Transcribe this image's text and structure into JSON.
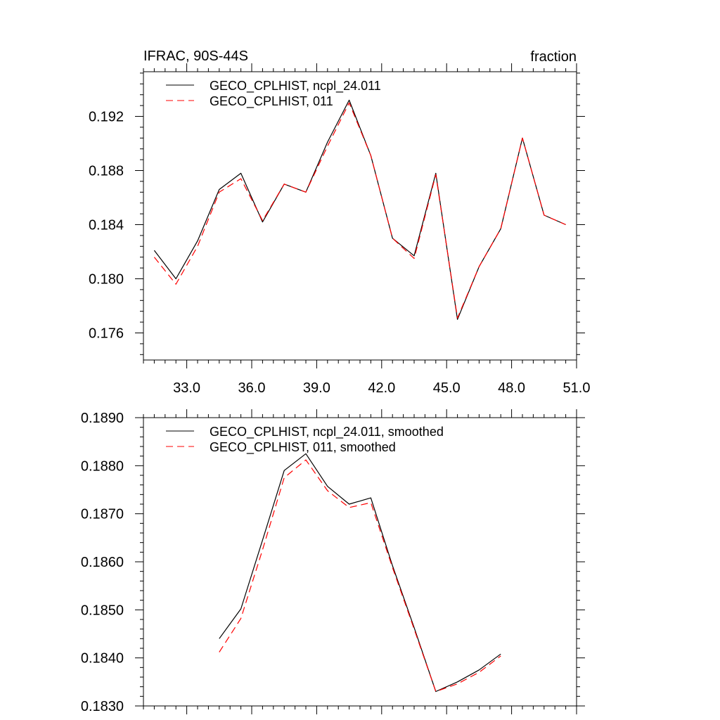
{
  "chart_data": [
    {
      "type": "line",
      "title_left": "IFRAC, 90S-44S",
      "title_right": "fraction",
      "xlim": [
        31.0,
        51.0
      ],
      "ylim": [
        0.174,
        0.1953
      ],
      "x_ticks": [
        33.0,
        36.0,
        39.0,
        42.0,
        45.0,
        48.0,
        51.0
      ],
      "x_tick_labels": [
        "33.0",
        "36.0",
        "39.0",
        "42.0",
        "45.0",
        "48.0",
        "51.0"
      ],
      "y_ticks": [
        0.176,
        0.18,
        0.184,
        0.188,
        0.192
      ],
      "y_tick_labels": [
        "0.176",
        "0.180",
        "0.184",
        "0.188",
        "0.192"
      ],
      "legend_position": "top-left",
      "series": [
        {
          "name": "GECO_CPLHIST, ncpl_24.011",
          "color": "#000000",
          "dash": "solid",
          "x": [
            31.5,
            32.5,
            33.5,
            34.5,
            35.5,
            36.5,
            37.5,
            38.5,
            39.5,
            40.5,
            41.5,
            42.5,
            43.5,
            44.5,
            45.5,
            46.5,
            47.5,
            48.5,
            49.5,
            50.5
          ],
          "y": [
            0.1821,
            0.18,
            0.1828,
            0.1866,
            0.1878,
            0.1842,
            0.187,
            0.1864,
            0.1901,
            0.1932,
            0.1891,
            0.183,
            0.1817,
            0.1878,
            0.177,
            0.1809,
            0.1837,
            0.1904,
            0.1847,
            0.184
          ]
        },
        {
          "name": "GECO_CPLHIST, 011",
          "color": "#ff0000",
          "dash": "dashed",
          "x": [
            31.5,
            32.5,
            33.5,
            34.5,
            35.5,
            36.5,
            37.5,
            38.5,
            39.5,
            40.5,
            41.5,
            42.5,
            43.5,
            44.5,
            45.5,
            46.5,
            47.5,
            48.5,
            49.5,
            50.5
          ],
          "y": [
            0.1816,
            0.1796,
            0.1824,
            0.1864,
            0.1874,
            0.1843,
            0.187,
            0.1864,
            0.1898,
            0.193,
            0.1891,
            0.183,
            0.1815,
            0.1877,
            0.1771,
            0.1809,
            0.1837,
            0.1904,
            0.1847,
            0.184
          ]
        }
      ]
    },
    {
      "type": "line",
      "xlim": [
        31.0,
        51.0
      ],
      "ylim": [
        0.183,
        0.189
      ],
      "x_ticks": [
        33.0,
        36.0,
        39.0,
        42.0,
        45.0,
        48.0,
        51.0
      ],
      "y_ticks": [
        0.183,
        0.184,
        0.185,
        0.186,
        0.187,
        0.188,
        0.189
      ],
      "y_tick_labels": [
        "0.1830",
        "0.1840",
        "0.1850",
        "0.1860",
        "0.1870",
        "0.1880",
        "0.1890"
      ],
      "legend_position": "top-left",
      "series": [
        {
          "name": "GECO_CPLHIST, ncpl_24.011, smoothed",
          "color": "#000000",
          "dash": "solid",
          "x": [
            34.5,
            35.5,
            36.5,
            37.5,
            38.5,
            39.5,
            40.5,
            41.5,
            42.5,
            43.5,
            44.5,
            45.5,
            46.5,
            47.5
          ],
          "y": [
            0.1844,
            0.18502,
            0.18645,
            0.1879,
            0.18825,
            0.18757,
            0.1872,
            0.18733,
            0.18592,
            0.18463,
            0.1833,
            0.1835,
            0.18375,
            0.18408
          ]
        },
        {
          "name": "GECO_CPLHIST, 011, smoothed",
          "color": "#ff0000",
          "dash": "dashed",
          "x": [
            34.5,
            35.5,
            36.5,
            37.5,
            38.5,
            39.5,
            40.5,
            41.5,
            42.5,
            43.5,
            44.5,
            45.5,
            46.5,
            47.5
          ],
          "y": [
            0.18412,
            0.18482,
            0.18625,
            0.18775,
            0.18812,
            0.18748,
            0.18713,
            0.18723,
            0.18588,
            0.1846,
            0.1833,
            0.18346,
            0.1837,
            0.18404
          ]
        }
      ]
    }
  ]
}
